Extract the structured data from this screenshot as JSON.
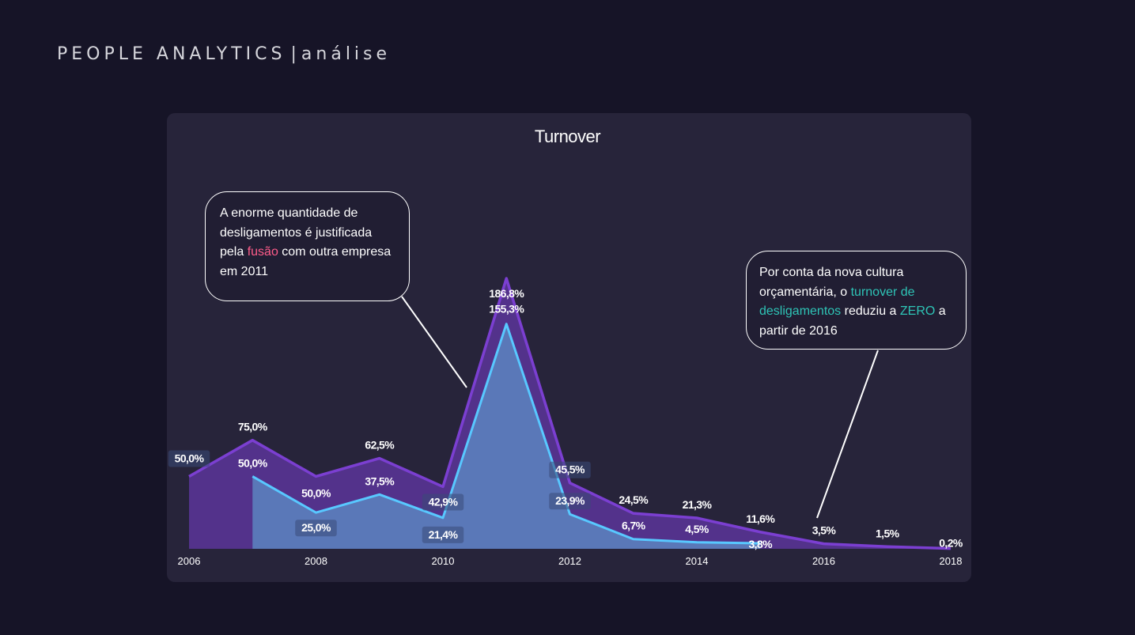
{
  "header": {
    "brand": "PEOPLE ANALYTICS",
    "separator": "|",
    "section": "análise"
  },
  "colors": {
    "purple": "#7b3fd1",
    "purple_fill": "#55348f",
    "blue_line": "#58c8ff",
    "blue_fill": "#5a78b8",
    "pink": "#ff5c8a",
    "teal": "#2ec4b6"
  },
  "callouts": [
    {
      "parts": [
        "A enorme quantidade de desligamentos é justificada pela ",
        "fusão",
        " com outra empresa em 2011"
      ]
    },
    {
      "parts": [
        "Por conta da nova cultura orçamentária, o ",
        "turnover de desligamentos",
        " reduziu a ",
        "ZERO",
        " a partir de 2016"
      ]
    }
  ],
  "chart_data": {
    "type": "area",
    "title": "Turnover",
    "x_ticks": [
      "2006",
      "2008",
      "2010",
      "2012",
      "2014",
      "2016",
      "2018"
    ],
    "xlim": [
      2006,
      2018
    ],
    "ylim": [
      0,
      186.8
    ],
    "series": [
      {
        "x": [
          2006,
          2007,
          2008,
          2009,
          2010,
          2011,
          2012,
          2013,
          2014,
          2015,
          2016,
          2017,
          2018
        ],
        "values": [
          50.0,
          75.0,
          50.0,
          62.5,
          42.9,
          186.8,
          45.5,
          24.5,
          21.3,
          11.6,
          3.5,
          1.5,
          0.2
        ],
        "labels": [
          "50,0%",
          "75,0%",
          "50,0%",
          "62,5%",
          "42,9%",
          "186,8%",
          "45,5%",
          "24,5%",
          "21,3%",
          "11,6%",
          "3,5%",
          "1,5%",
          "0,2%"
        ]
      },
      {
        "x": [
          2007,
          2008,
          2009,
          2010,
          2011,
          2012,
          2013,
          2014,
          2015
        ],
        "values": [
          50.0,
          25.0,
          37.5,
          21.4,
          155.3,
          23.9,
          6.7,
          4.5,
          3.8
        ],
        "labels": [
          "50,0%",
          "25,0%",
          "37,5%",
          "21,4%",
          "155,3%",
          "23,9%",
          "6,7%",
          "4,5%",
          "3,8%"
        ]
      }
    ]
  }
}
